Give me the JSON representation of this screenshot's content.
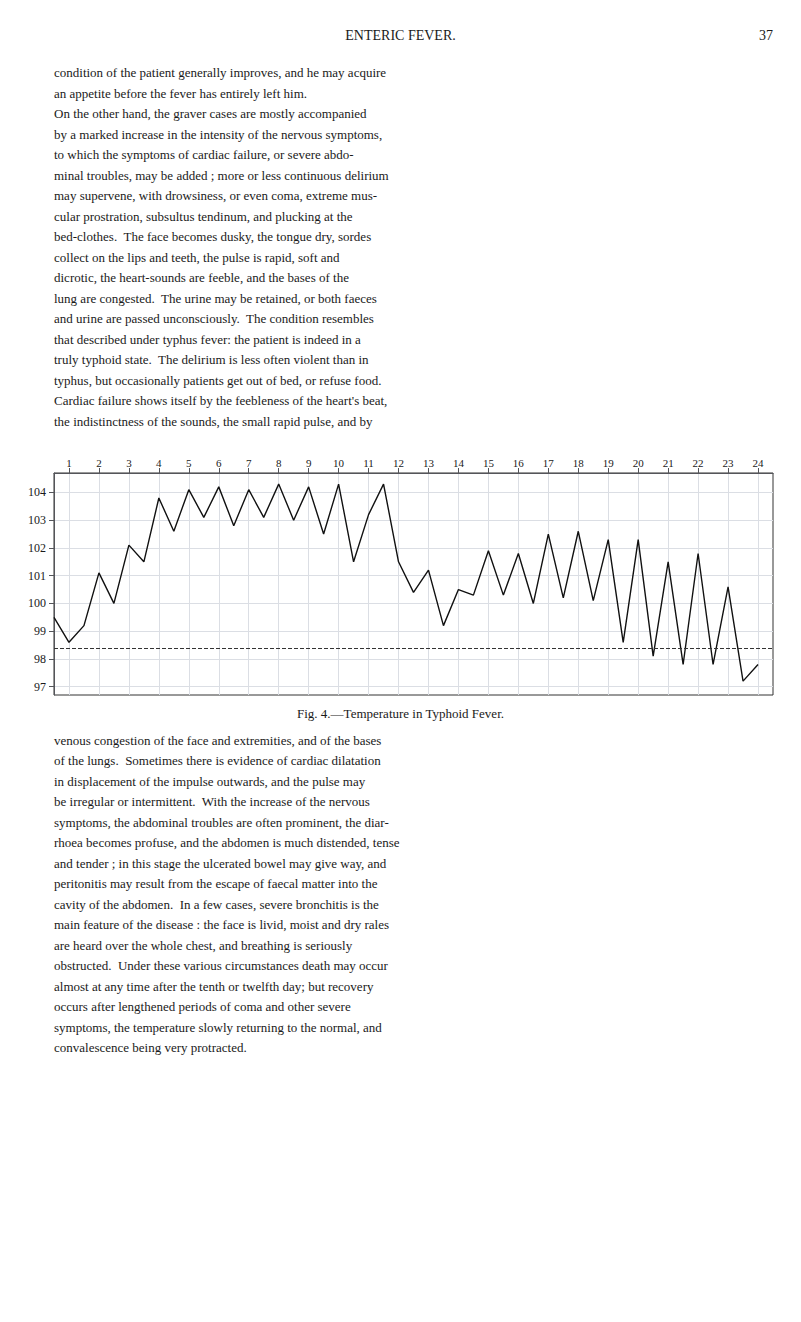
{
  "chart_data": {
    "type": "line",
    "title": "Fig. 4.—Temperature in Typhoid Fever.",
    "page_title": "ENTERIC FEVER.",
    "page_number": "37",
    "text_above": [
      "condition of the patient generally improves, and he may acquire",
      "an appetite before the fever has entirely left him.",
      "On the other hand, the graver cases are mostly accompanied",
      "by a marked increase in the intensity of the nervous symptoms,",
      "to which the symptoms of cardiac failure, or severe abdo-",
      "minal troubles, may be added ; more or less continuous delirium",
      "may supervene, with drowsiness, or even coma, extreme mus-",
      "cular prostration, subsultus tendinum, and plucking at the",
      "bed-clothes.  The face becomes dusky, the tongue dry, sordes",
      "collect on the lips and teeth, the pulse is rapid, soft and",
      "dicrotic, the heart-sounds are feeble, and the bases of the",
      "lung are congested.  The urine may be retained, or both faeces",
      "and urine are passed unconsciously.  The condition resembles",
      "that described under typhus fever: the patient is indeed in a",
      "truly typhoid state.  The delirium is less often violent than in",
      "typhus, but occasionally patients get out of bed, or refuse food.",
      "Cardiac failure shows itself by the feebleness of the heart's beat,",
      "the indistinctness of the sounds, the small rapid pulse, and by"
    ],
    "text_below": [
      "venous congestion of the face and extremities, and of the bases",
      "of the lungs.  Sometimes there is evidence of cardiac dilatation",
      "in displacement of the impulse outwards, and the pulse may",
      "be irregular or intermittent.  With the increase of the nervous",
      "symptoms, the abdominal troubles are often prominent, the diar-",
      "rhoea becomes profuse, and the abdomen is much distended, tense",
      "and tender ; in this stage the ulcerated bowel may give way, and",
      "peritonitis may result from the escape of faecal matter into the",
      "cavity of the abdomen.  In a few cases, severe bronchitis is the",
      "main feature of the disease : the face is livid, moist and dry rales",
      "are heard over the whole chest, and breathing is seriously",
      "obstructed.  Under these various circumstances death may occur",
      "almost at any time after the tenth or twelfth day; but recovery",
      "occurs after lengthened periods of coma and other severe",
      "symptoms, the temperature slowly returning to the normal, and",
      "convalescence being very protracted."
    ],
    "x": [
      0.5,
      1.0,
      1.5,
      2.0,
      2.5,
      3.0,
      3.5,
      4.0,
      4.5,
      5.0,
      5.5,
      6.0,
      6.5,
      7.0,
      7.5,
      8.0,
      8.5,
      9.0,
      9.5,
      10.0,
      10.5,
      11.0,
      11.5,
      12.0,
      12.5,
      13.0,
      13.5,
      14.0,
      14.5,
      15.0,
      15.5,
      16.0,
      16.5,
      17.0,
      17.5,
      18.0,
      18.5,
      19.0,
      19.5,
      20.0,
      20.5,
      21.0,
      21.5,
      22.0,
      22.5,
      23.0,
      23.5,
      24.0
    ],
    "values": [
      99.5,
      98.6,
      99.2,
      101.1,
      100.0,
      102.1,
      101.5,
      103.8,
      102.6,
      104.1,
      103.1,
      104.2,
      102.8,
      104.1,
      103.1,
      104.3,
      103.0,
      104.2,
      102.5,
      104.3,
      101.5,
      103.2,
      104.3,
      101.5,
      100.4,
      101.2,
      99.2,
      100.5,
      100.3,
      101.9,
      100.3,
      101.8,
      100.0,
      102.5,
      100.2,
      102.6,
      100.1,
      102.3,
      98.6,
      102.3,
      98.1,
      101.5,
      97.8,
      101.8,
      97.8,
      100.6,
      97.2,
      97.8
    ],
    "color": "#111111",
    "xlim": [
      0.5,
      24.5
    ],
    "xticks": [
      1,
      2,
      3,
      4,
      5,
      6,
      7,
      8,
      9,
      10,
      11,
      12,
      13,
      14,
      15,
      16,
      17,
      18,
      19,
      20,
      21,
      22,
      23,
      24
    ],
    "ylim": [
      96.7,
      104.7
    ],
    "yticks": [
      97,
      98,
      99,
      100,
      101,
      102,
      103,
      104
    ],
    "hline": 98.4,
    "grid": true
  }
}
